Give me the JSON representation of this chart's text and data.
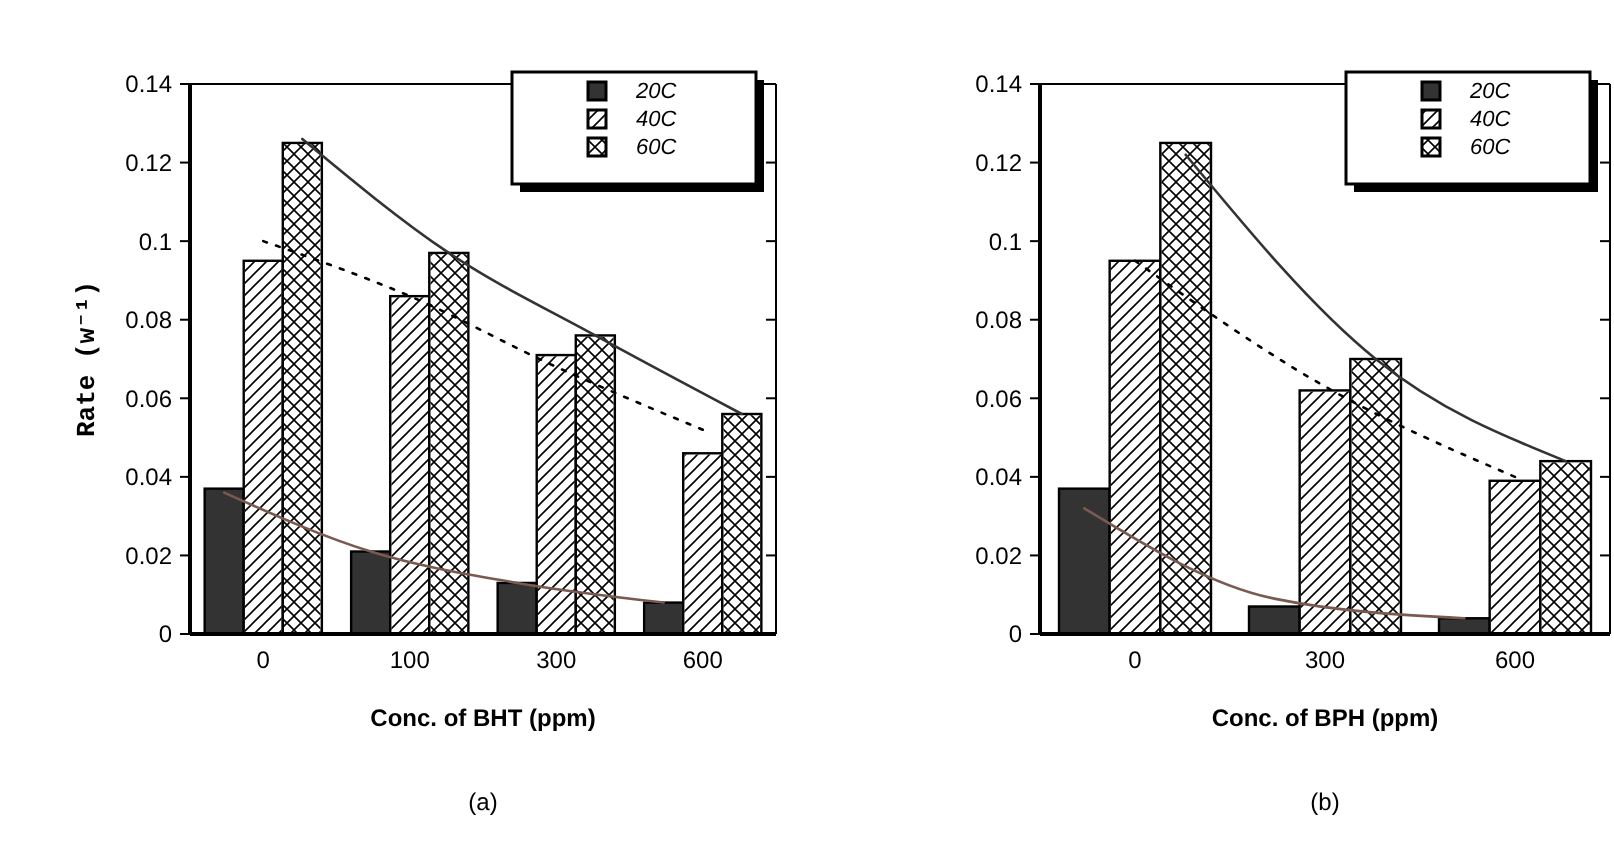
{
  "chart_data": [
    {
      "type": "bar",
      "categories": [
        "0",
        "100",
        "300",
        "600"
      ],
      "xlabel": "Conc. of BHT (ppm)",
      "ylabel": "Rate (w⁻¹)",
      "ylim": [
        0,
        0.14
      ],
      "yticks": [
        0,
        0.02,
        0.04,
        0.06,
        0.08,
        {
          "value": 0.1,
          "label": "0.1"
        },
        0.12,
        0.14
      ],
      "legend": "top right",
      "grid": false,
      "annotations": [
        "(a)"
      ],
      "series": [
        {
          "name": "20C",
          "color": "#333333",
          "values": [
            0.037,
            0.021,
            0.013,
            0.008
          ]
        },
        {
          "name": "40C",
          "color": "#ffffff",
          "values": [
            0.095,
            0.086,
            0.071,
            0.046
          ]
        },
        {
          "name": "60C",
          "color": "#ffffff",
          "values": [
            0.125,
            0.097,
            0.076,
            0.056
          ]
        },
        {
          "type": "line",
          "color": "#7a5a50",
          "line_style": "solid",
          "values": [
            0.036,
            0.021,
            0.013,
            0.008
          ]
        },
        {
          "type": "line",
          "color": "#000000",
          "line_style": "dotted",
          "values": [
            0.1,
            0.086,
            0.068,
            0.052
          ]
        },
        {
          "type": "line",
          "color": "#333333",
          "line_style": "solid",
          "values": [
            0.126,
            0.097,
            0.076,
            0.056
          ]
        }
      ]
    },
    {
      "type": "bar",
      "categories": [
        "0",
        "300",
        "600"
      ],
      "xlabel": "Conc. of BPH (ppm)",
      "ylim": [
        0,
        0.14
      ],
      "yticks": [
        0,
        0.02,
        0.04,
        0.06,
        0.08,
        {
          "value": 0.1,
          "label": "0.1"
        },
        0.12,
        0.14
      ],
      "legend": "top right",
      "grid": false,
      "annotations": [
        "(b)"
      ],
      "series": [
        {
          "name": "20C",
          "color": "#333333",
          "values": [
            0.037,
            0.007,
            0.004
          ]
        },
        {
          "name": "40C",
          "color": "#ffffff",
          "values": [
            0.095,
            0.062,
            0.039
          ]
        },
        {
          "name": "60C",
          "color": "#ffffff",
          "values": [
            0.125,
            0.07,
            0.044
          ]
        },
        {
          "type": "line",
          "color": "#7a5a50",
          "line_style": "solid",
          "values": [
            0.032,
            0.009,
            0.004
          ]
        },
        {
          "type": "line",
          "color": "#000000",
          "line_style": "dotted",
          "values": [
            0.095,
            0.063,
            0.04
          ]
        },
        {
          "type": "line",
          "color": "#333333",
          "line_style": "solid",
          "values": [
            0.122,
            0.07,
            0.044
          ]
        }
      ]
    }
  ]
}
